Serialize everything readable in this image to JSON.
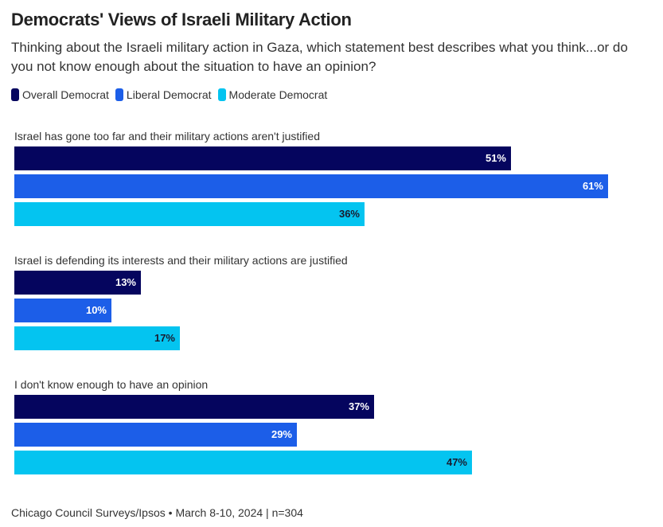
{
  "chart_data": {
    "type": "bar",
    "orientation": "horizontal",
    "title": "Democrats' Views of Israeli Military Action",
    "subtitle": "Thinking about the Israeli military action in Gaza, which statement best describes what you think...or do you not know enough about the situation to have an opinion?",
    "categories": [
      "Israel has gone too far and their military actions aren't justified",
      "Israel is defending its interests and their military actions are justified",
      "I don't know enough to have an opinion"
    ],
    "series": [
      {
        "name": "Overall Democrat",
        "color": "#05055e",
        "label_color": "#ffffff",
        "values": [
          51,
          13,
          37
        ]
      },
      {
        "name": "Liberal Democrat",
        "color": "#1c5ee8",
        "label_color": "#ffffff",
        "values": [
          61,
          10,
          29
        ]
      },
      {
        "name": "Moderate Democrat",
        "color": "#04c4f0",
        "label_color": "#1a1a2e",
        "values": [
          36,
          17,
          47
        ]
      }
    ],
    "value_suffix": "%",
    "xlim": [
      0,
      61
    ],
    "grid": false,
    "legend_position": "top-left",
    "source": "Chicago Council Surveys/Ipsos • March 8-10, 2024 | n=304"
  }
}
